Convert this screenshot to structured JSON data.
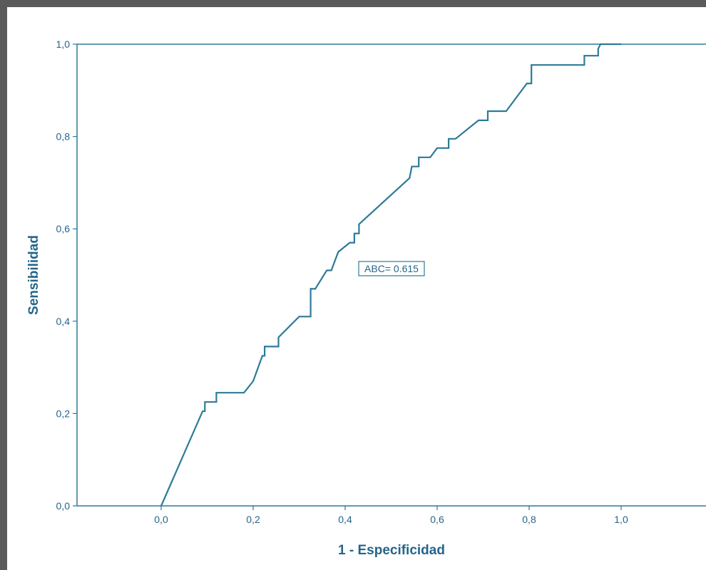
{
  "chart_data": {
    "type": "line",
    "xlabel": "1 - Especificidad",
    "ylabel": "Sensibilidad",
    "xlim": [
      -0.18,
      1.18
    ],
    "ylim": [
      0.0,
      1.0
    ],
    "xticks": [
      "0,0",
      "0,2",
      "0,4",
      "0,6",
      "0,8",
      "1,0"
    ],
    "yticks": [
      "0,0",
      "0,2",
      "0,4",
      "0,6",
      "0,8",
      "1,0"
    ],
    "annotation": "ABC= 0.615",
    "grid": false,
    "series": [
      {
        "points": [
          [
            0.0,
            0.0
          ],
          [
            0.09,
            0.205
          ],
          [
            0.095,
            0.205
          ],
          [
            0.095,
            0.225
          ],
          [
            0.12,
            0.225
          ],
          [
            0.12,
            0.245
          ],
          [
            0.18,
            0.245
          ],
          [
            0.2,
            0.27
          ],
          [
            0.22,
            0.325
          ],
          [
            0.225,
            0.325
          ],
          [
            0.225,
            0.345
          ],
          [
            0.255,
            0.345
          ],
          [
            0.255,
            0.365
          ],
          [
            0.3,
            0.41
          ],
          [
            0.325,
            0.41
          ],
          [
            0.325,
            0.47
          ],
          [
            0.335,
            0.47
          ],
          [
            0.36,
            0.51
          ],
          [
            0.37,
            0.51
          ],
          [
            0.385,
            0.55
          ],
          [
            0.41,
            0.57
          ],
          [
            0.42,
            0.57
          ],
          [
            0.42,
            0.59
          ],
          [
            0.43,
            0.59
          ],
          [
            0.43,
            0.61
          ],
          [
            0.54,
            0.71
          ],
          [
            0.545,
            0.735
          ],
          [
            0.56,
            0.735
          ],
          [
            0.56,
            0.755
          ],
          [
            0.585,
            0.755
          ],
          [
            0.6,
            0.775
          ],
          [
            0.625,
            0.775
          ],
          [
            0.625,
            0.795
          ],
          [
            0.64,
            0.795
          ],
          [
            0.69,
            0.835
          ],
          [
            0.71,
            0.835
          ],
          [
            0.71,
            0.855
          ],
          [
            0.75,
            0.855
          ],
          [
            0.795,
            0.915
          ],
          [
            0.805,
            0.915
          ],
          [
            0.805,
            0.955
          ],
          [
            0.92,
            0.955
          ],
          [
            0.92,
            0.975
          ],
          [
            0.95,
            0.975
          ],
          [
            0.95,
            0.99
          ],
          [
            0.955,
            1.0
          ],
          [
            1.0,
            1.0
          ]
        ]
      }
    ]
  },
  "colors": {
    "line": "#2c7a98",
    "axis": "#2c7a98",
    "text": "#23658a",
    "frame": "#5a5a5a"
  }
}
